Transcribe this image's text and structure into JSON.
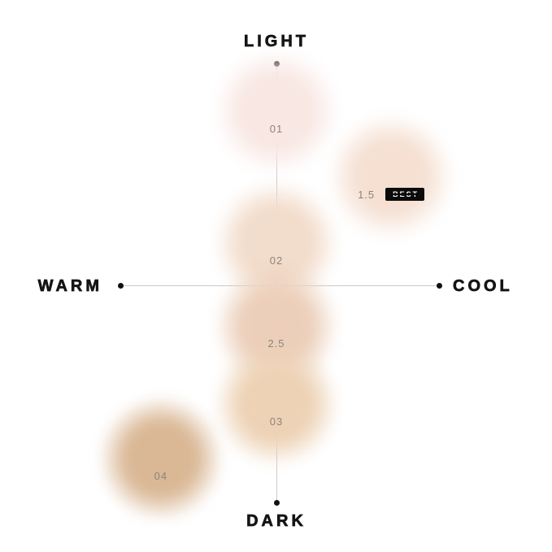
{
  "page": {
    "background": "#ffffff"
  },
  "chart_data": {
    "type": "scatter",
    "title": "",
    "description": "Shade map of foundation tones plotted on light-dark (vertical) and warm-cool (horizontal) axes",
    "axes": {
      "vertical": {
        "top_label": "LIGHT",
        "bottom_label": "DARK",
        "range": [
          -1,
          1
        ]
      },
      "horizontal": {
        "left_label": "WARM",
        "right_label": "COOL",
        "range": [
          -1,
          1
        ]
      }
    },
    "grid": false,
    "legend": false,
    "points": [
      {
        "label": "01",
        "color": "#f8e7e3",
        "warm_cool": 0.0,
        "light_dark": 0.784,
        "best": false
      },
      {
        "label": "1.5",
        "color": "#f5e0d2",
        "warm_cool": 0.72,
        "light_dark": 0.49,
        "best": true
      },
      {
        "label": "02",
        "color": "#f2dccb",
        "warm_cool": 0.0,
        "light_dark": 0.19,
        "best": false
      },
      {
        "label": "2.5",
        "color": "#eccfba",
        "warm_cool": 0.0,
        "light_dark": -0.183,
        "best": false
      },
      {
        "label": "03",
        "color": "#edd2b5",
        "warm_cool": 0.0,
        "light_dark": -0.535,
        "best": false
      },
      {
        "label": "04",
        "color": "#dab896",
        "warm_cool": -0.725,
        "light_dark": -0.78,
        "best": false
      }
    ],
    "badge": {
      "label": "BEST",
      "bg": "#0b0b0b",
      "fg": "#ffffff"
    },
    "colors": {
      "axis_line": "#c9c9c9",
      "axis_dot": "#111111",
      "axis_text": "#141414",
      "point_label_text": "#8e837b"
    }
  }
}
